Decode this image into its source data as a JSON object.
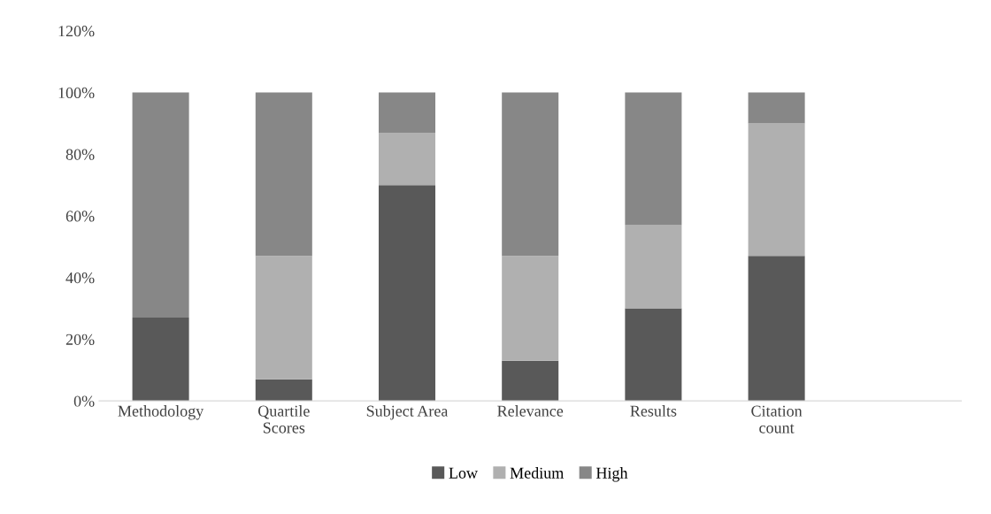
{
  "chart_data": {
    "type": "bar",
    "stacked": true,
    "categories": [
      "Methodology",
      "Quartile\nScores",
      "Subject Area",
      "Relevance",
      "Results",
      "Citation\ncount",
      null
    ],
    "series": [
      {
        "name": "Low",
        "color": "#595959",
        "values": [
          27,
          7,
          70,
          13,
          30,
          47,
          null
        ]
      },
      {
        "name": "Medium",
        "color": "#b0b0b0",
        "values": [
          0,
          40,
          17,
          34,
          27,
          43,
          null
        ]
      },
      {
        "name": "High",
        "color": "#878787",
        "values": [
          73,
          53,
          13,
          53,
          43,
          10,
          null
        ]
      }
    ],
    "ylim": [
      0,
      120
    ],
    "yticks": [
      {
        "value": 0,
        "label": "0%"
      },
      {
        "value": 20,
        "label": "20%"
      },
      {
        "value": 40,
        "label": "40%"
      },
      {
        "value": 60,
        "label": "60%"
      },
      {
        "value": 80,
        "label": "80%"
      },
      {
        "value": 100,
        "label": "100%"
      },
      {
        "value": 120,
        "label": "120%"
      }
    ],
    "legend": "bottom",
    "grid": false
  }
}
